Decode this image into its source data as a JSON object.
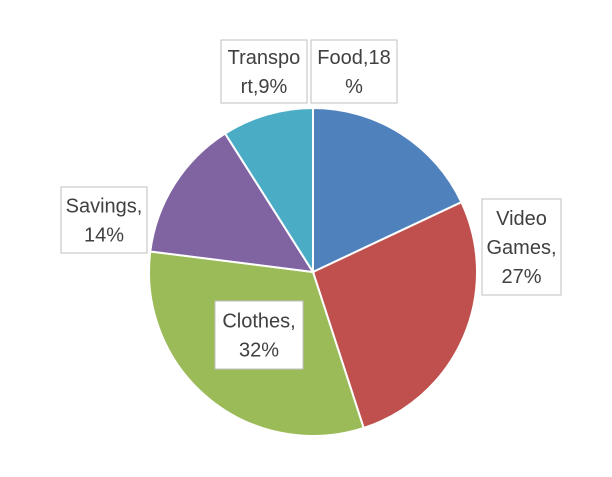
{
  "chart_data": {
    "type": "pie",
    "title": "",
    "categories": [
      "Food",
      "Video Games",
      "Clothes",
      "Savings",
      "Transport"
    ],
    "values": [
      18,
      27,
      32,
      14,
      9
    ],
    "colors": [
      "#4f81bd",
      "#c0504d",
      "#9bbb59",
      "#8064a2",
      "#4bacc6"
    ],
    "labels": [
      {
        "category": "Food",
        "lines": [
          "Food,18",
          "%"
        ]
      },
      {
        "category": "Video Games",
        "lines": [
          "Video",
          "Games,",
          "27%"
        ]
      },
      {
        "category": "Clothes",
        "lines": [
          "Clothes,",
          "32%"
        ]
      },
      {
        "category": "Savings",
        "lines": [
          "Savings,",
          "14%"
        ]
      },
      {
        "category": "Transport",
        "lines": [
          "Transpo",
          "rt,9%"
        ]
      }
    ],
    "legend": "none",
    "start_angle_deg": 0,
    "direction": "clockwise"
  }
}
